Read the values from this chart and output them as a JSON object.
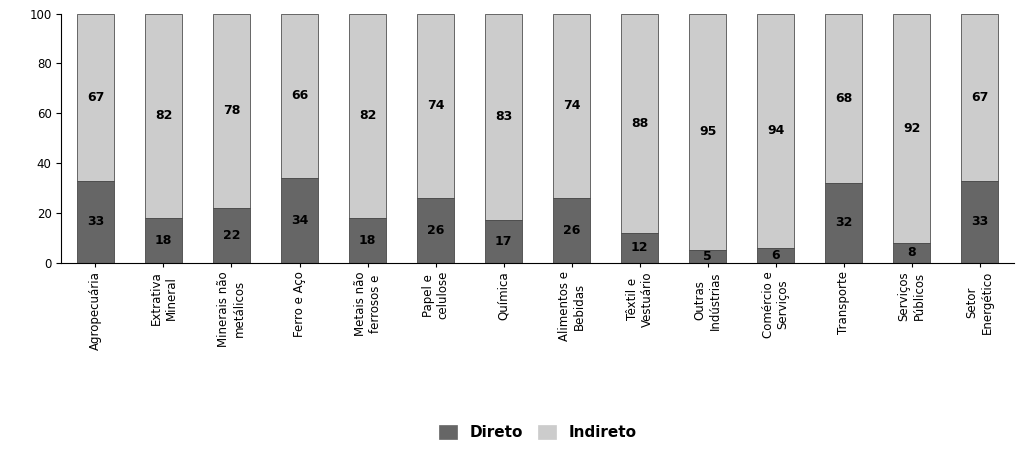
{
  "categories": [
    "Agropecuária",
    "Extrativa\nMineral",
    "Minerais não\nmetálicos",
    "Ferro e Aço",
    "Metais não\nferrosos e",
    "Papel e\ncelulose",
    "Química",
    "Alimentos e\nBebidas",
    "Têxtil e\nVestuário",
    "Outras\nIndústrias",
    "Comércio e\nServiços",
    "Transporte",
    "Serviços\nPúblicos",
    "Setor\nEnergético"
  ],
  "direto": [
    33,
    18,
    22,
    34,
    18,
    26,
    17,
    26,
    12,
    5,
    6,
    32,
    8,
    33
  ],
  "indireto": [
    67,
    82,
    78,
    66,
    82,
    74,
    83,
    74,
    88,
    95,
    94,
    68,
    92,
    67
  ],
  "direto_color": "#666666",
  "indireto_color": "#cccccc",
  "bar_edge_color": "#333333",
  "ylim": [
    0,
    100
  ],
  "yticks": [
    0,
    20,
    40,
    60,
    80,
    100
  ],
  "legend_labels": [
    "Direto",
    "Indireto"
  ],
  "bar_width": 0.55,
  "label_fontsize": 9,
  "tick_fontsize": 8.5,
  "legend_fontsize": 11,
  "background_color": "#ffffff"
}
